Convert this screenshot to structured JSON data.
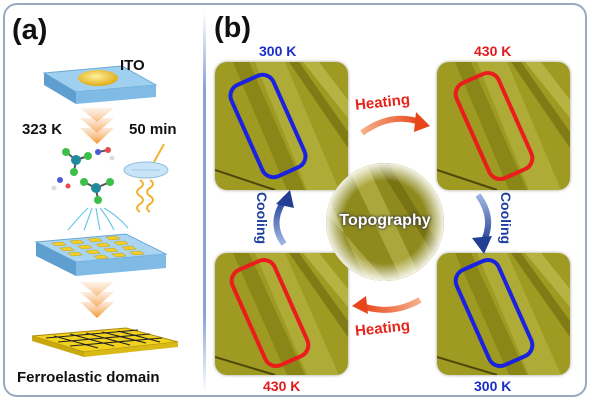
{
  "panels": {
    "a_label": "(a)",
    "b_label": "(b)"
  },
  "schematic": {
    "substrate_label": "ITO",
    "temperature": "323 K",
    "duration": "50 min",
    "domain_label": "Ferroelastic domain"
  },
  "micrographs": {
    "top_left_temp": "300 K",
    "top_right_temp": "430 K",
    "bottom_left_temp": "430 K",
    "bottom_right_temp": "300 K",
    "center_label": "Topography"
  },
  "arrows": {
    "top": "Heating",
    "bottom": "Heating",
    "left": "Cooling",
    "right": "Cooling"
  },
  "colors": {
    "cold_marker": "#1a22e0",
    "hot_marker": "#ea1c1c",
    "temp_cold_text": "#1b2ec9",
    "temp_hot_text": "#e01b1b",
    "heating_text": "#e8231a",
    "cooling_text": "#1f3f9e",
    "micrograph_bg": "#9e9a22",
    "frame": "#9aa9c3"
  }
}
